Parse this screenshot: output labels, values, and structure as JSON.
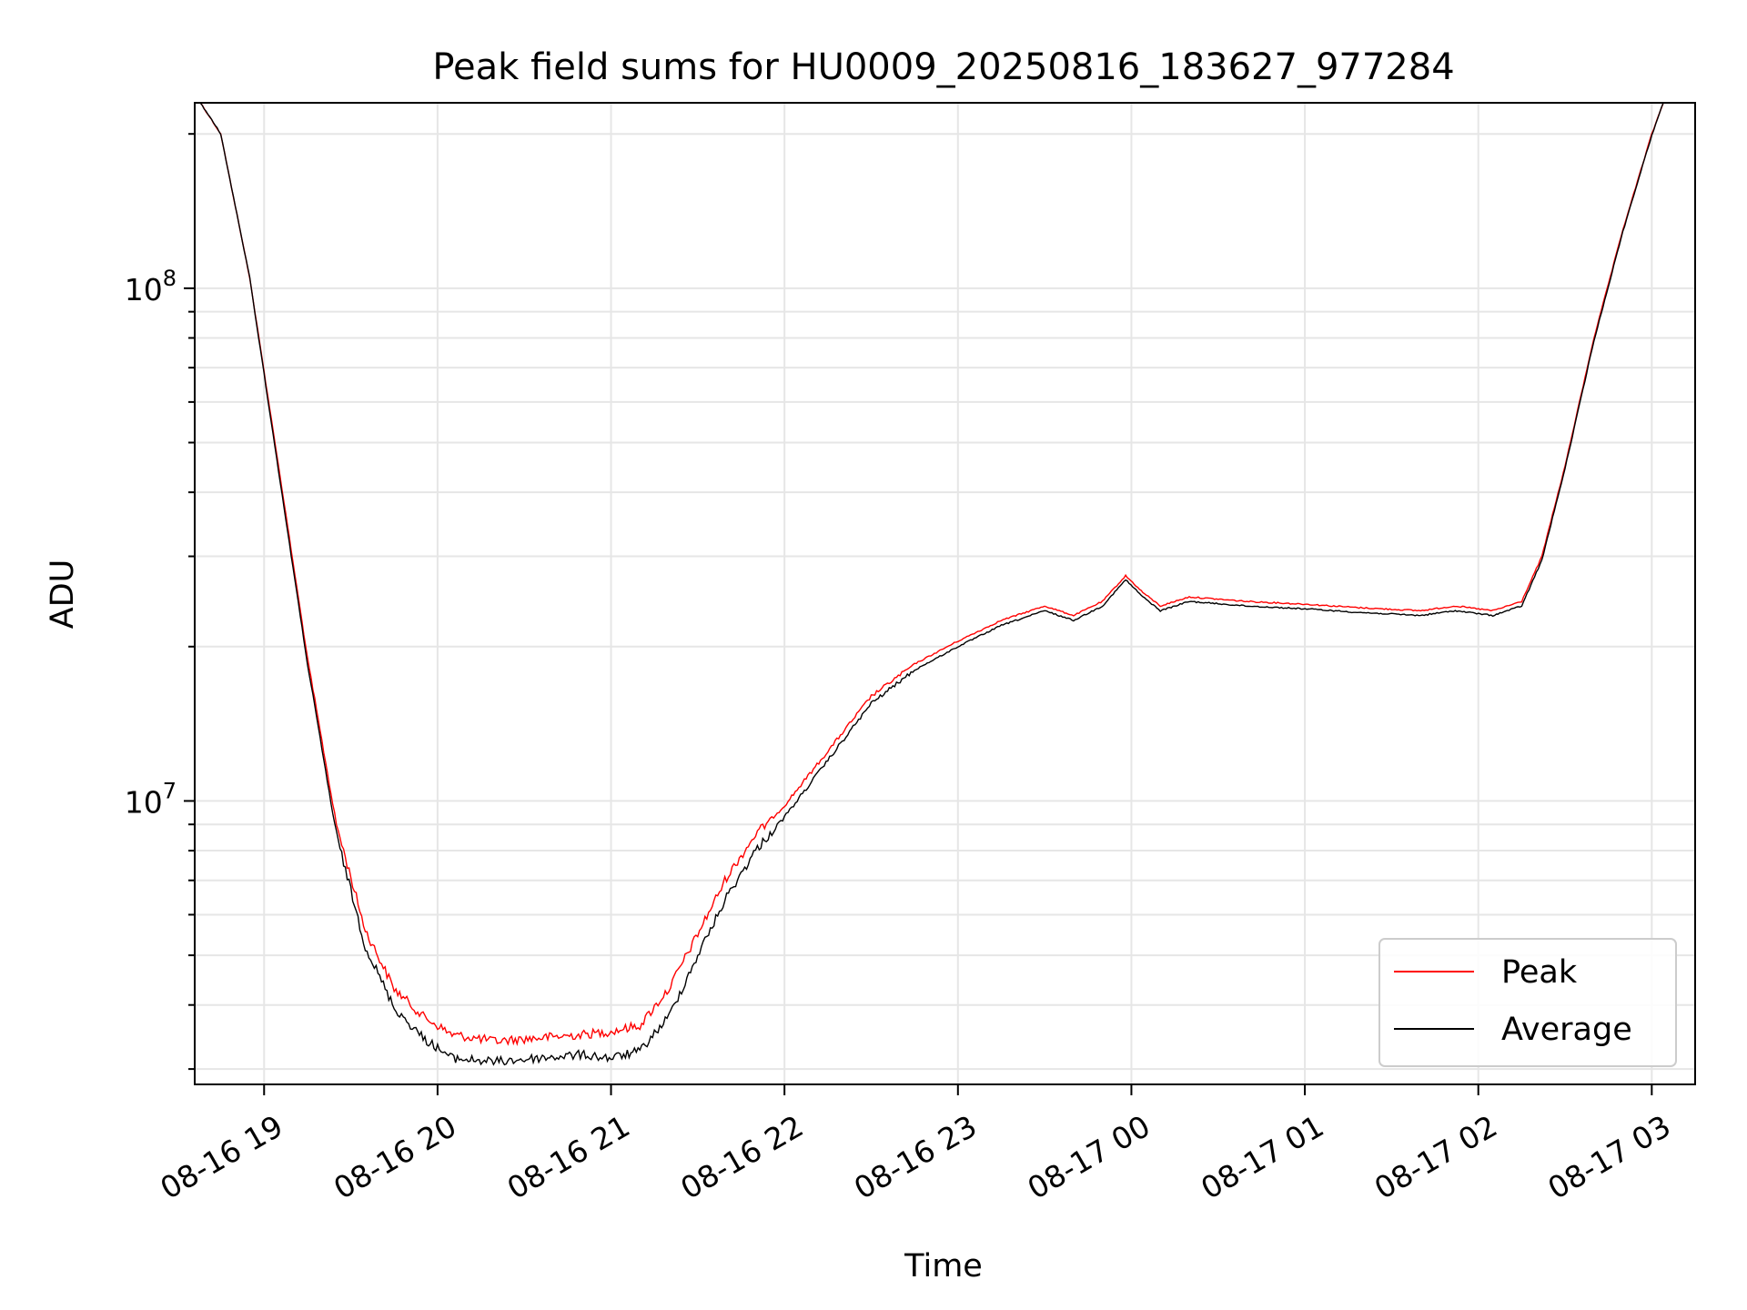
{
  "chart_data": {
    "type": "line",
    "title": "Peak field sums for HU0009_20250816_183627_977284",
    "xlabel": "Time",
    "ylabel": "ADU",
    "x_range": [
      "2025-08-16 18:36",
      "2025-08-17 03:15"
    ],
    "y_scale": "log",
    "ylim": [
      2800000,
      230000000
    ],
    "x_ticks": [
      "08-16 19",
      "08-16 20",
      "08-16 21",
      "08-16 22",
      "08-16 23",
      "08-17 00",
      "08-17 01",
      "08-17 02",
      "08-17 03"
    ],
    "y_ticks": [
      {
        "base": "10",
        "exp": "7",
        "value": 10000000
      },
      {
        "base": "10",
        "exp": "8",
        "value": 100000000
      }
    ],
    "grid": true,
    "legend_position": "lower right",
    "series": [
      {
        "name": "Peak",
        "color": "#ff0000",
        "x": [
          "2025-08-16 18:38",
          "2025-08-16 18:45",
          "2025-08-16 18:55",
          "2025-08-16 19:05",
          "2025-08-16 19:15",
          "2025-08-16 19:25",
          "2025-08-16 19:35",
          "2025-08-16 19:45",
          "2025-08-16 19:55",
          "2025-08-16 20:05",
          "2025-08-16 20:20",
          "2025-08-16 20:35",
          "2025-08-16 20:50",
          "2025-08-16 21:00",
          "2025-08-16 21:10",
          "2025-08-16 21:20",
          "2025-08-16 21:30",
          "2025-08-16 21:40",
          "2025-08-16 21:50",
          "2025-08-16 22:00",
          "2025-08-16 22:15",
          "2025-08-16 22:30",
          "2025-08-16 22:45",
          "2025-08-16 23:00",
          "2025-08-16 23:15",
          "2025-08-16 23:30",
          "2025-08-16 23:40",
          "2025-08-16 23:50",
          "2025-08-16 23:58",
          "2025-08-17 00:04",
          "2025-08-17 00:10",
          "2025-08-17 00:20",
          "2025-08-17 00:40",
          "2025-08-17 01:00",
          "2025-08-17 01:20",
          "2025-08-17 01:40",
          "2025-08-17 01:52",
          "2025-08-17 02:05",
          "2025-08-17 02:15",
          "2025-08-17 02:22",
          "2025-08-17 02:30",
          "2025-08-17 02:40",
          "2025-08-17 02:50",
          "2025-08-17 03:00",
          "2025-08-17 03:04"
        ],
        "y": [
          230000000,
          200000000,
          105000000,
          45000000,
          19000000,
          9000000,
          5600000,
          4300000,
          3800000,
          3500000,
          3400000,
          3450000,
          3500000,
          3550000,
          3650000,
          4300000,
          5500000,
          7100000,
          8600000,
          9800000,
          12500000,
          16000000,
          18500000,
          20500000,
          22500000,
          24000000,
          23000000,
          24500000,
          27500000,
          25500000,
          24000000,
          25000000,
          24500000,
          24200000,
          23800000,
          23500000,
          24000000,
          23500000,
          24500000,
          30000000,
          45000000,
          80000000,
          130000000,
          200000000,
          230000000
        ]
      },
      {
        "name": "Average",
        "color": "#000000",
        "x": [
          "2025-08-16 18:38",
          "2025-08-16 18:45",
          "2025-08-16 18:55",
          "2025-08-16 19:05",
          "2025-08-16 19:15",
          "2025-08-16 19:25",
          "2025-08-16 19:35",
          "2025-08-16 19:45",
          "2025-08-16 19:55",
          "2025-08-16 20:05",
          "2025-08-16 20:20",
          "2025-08-16 20:35",
          "2025-08-16 20:50",
          "2025-08-16 21:00",
          "2025-08-16 21:10",
          "2025-08-16 21:20",
          "2025-08-16 21:30",
          "2025-08-16 21:40",
          "2025-08-16 21:50",
          "2025-08-16 22:00",
          "2025-08-16 22:15",
          "2025-08-16 22:30",
          "2025-08-16 22:45",
          "2025-08-16 23:00",
          "2025-08-16 23:15",
          "2025-08-16 23:30",
          "2025-08-16 23:40",
          "2025-08-16 23:50",
          "2025-08-16 23:58",
          "2025-08-17 00:04",
          "2025-08-17 00:10",
          "2025-08-17 00:20",
          "2025-08-17 00:40",
          "2025-08-17 01:00",
          "2025-08-17 01:20",
          "2025-08-17 01:40",
          "2025-08-17 01:52",
          "2025-08-17 02:05",
          "2025-08-17 02:15",
          "2025-08-17 02:22",
          "2025-08-17 02:30",
          "2025-08-17 02:40",
          "2025-08-17 02:50",
          "2025-08-17 03:00",
          "2025-08-17 03:04"
        ],
        "y": [
          230000000,
          200000000,
          105000000,
          44000000,
          18500000,
          8600000,
          5200000,
          3950000,
          3450000,
          3150000,
          3100000,
          3150000,
          3200000,
          3150000,
          3250000,
          3800000,
          5000000,
          6500000,
          8000000,
          9300000,
          12000000,
          15500000,
          18000000,
          20000000,
          22000000,
          23500000,
          22500000,
          24000000,
          27000000,
          25000000,
          23500000,
          24500000,
          24000000,
          23700000,
          23300000,
          23000000,
          23500000,
          23000000,
          24000000,
          29500000,
          44500000,
          79000000,
          129000000,
          199000000,
          230000000
        ]
      }
    ]
  }
}
